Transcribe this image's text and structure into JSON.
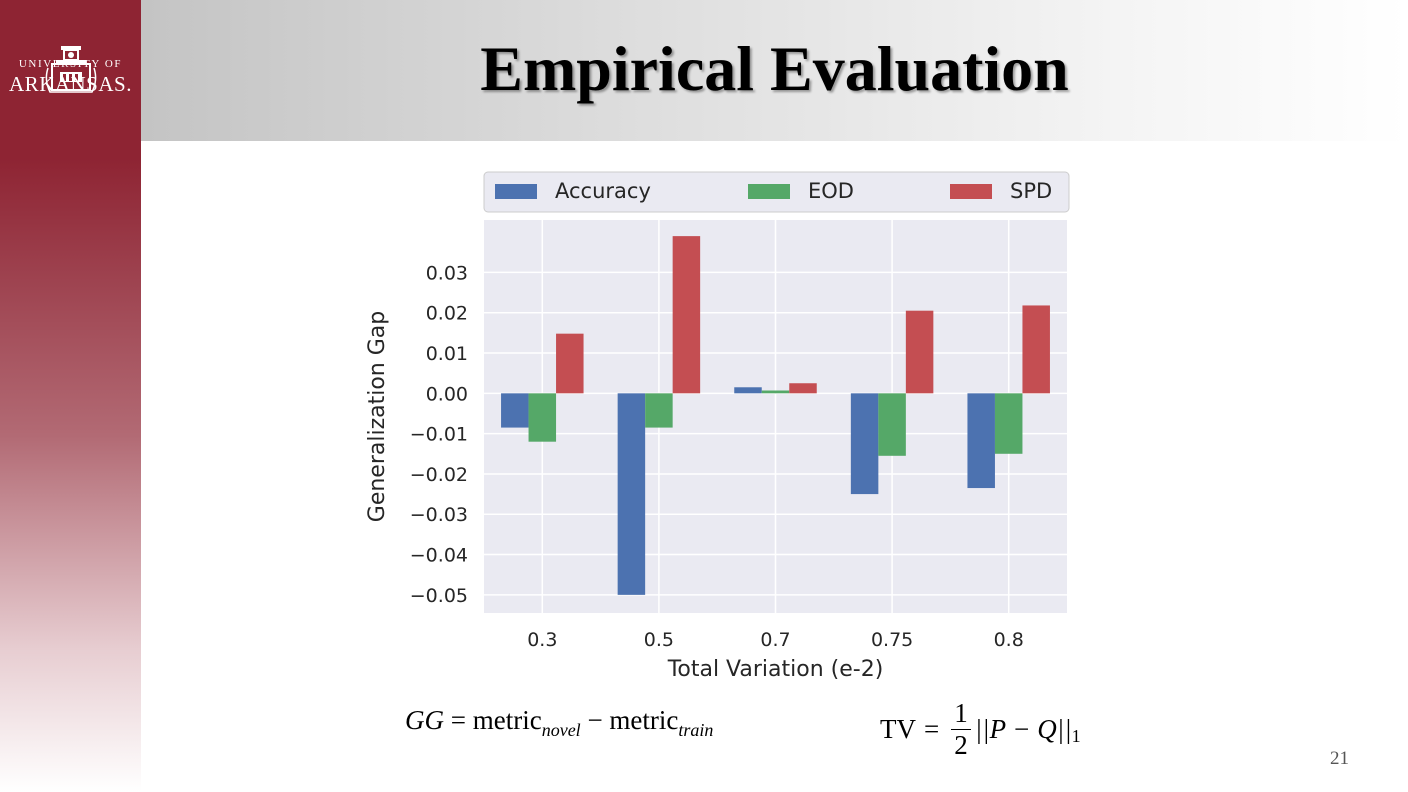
{
  "slide": {
    "title": "Empirical Evaluation",
    "page_number": "21",
    "logo_line1": "UNIVERSITY OF",
    "logo_line2": "ARKANSAS."
  },
  "formulas": {
    "gg_lhs": "GG",
    "eq": "=",
    "metric": "metric",
    "sub_novel": "novel",
    "minus": "−",
    "sub_train": "train",
    "tv_lhs": "TV",
    "frac_num": "1",
    "frac_den": "2",
    "norm": "||P − Q||",
    "norm_sub": "1"
  },
  "colors": {
    "sidebar": "#8e2433",
    "plot_bg": "#eaeaf2",
    "accuracy": "#4c72b0",
    "eod": "#55a868",
    "spd": "#c44e52"
  },
  "chart_data": {
    "type": "bar",
    "xlabel": "Total Variation (e-2)",
    "ylabel": "Generalization Gap",
    "categories": [
      "0.3",
      "0.5",
      "0.7",
      "0.75",
      "0.8"
    ],
    "series": [
      {
        "name": "Accuracy",
        "color": "#4c72b0",
        "values": [
          -0.0085,
          -0.05,
          0.0015,
          -0.025,
          -0.0235
        ]
      },
      {
        "name": "EOD",
        "color": "#55a868",
        "values": [
          -0.012,
          -0.0085,
          0.0007,
          -0.0155,
          -0.015
        ]
      },
      {
        "name": "SPD",
        "color": "#c44e52",
        "values": [
          0.0148,
          0.039,
          0.0025,
          0.0205,
          0.0218
        ]
      }
    ],
    "ylim": [
      -0.0545,
      0.043
    ],
    "yticks": [
      0.03,
      0.02,
      0.01,
      0.0,
      -0.01,
      -0.02,
      -0.03,
      -0.04,
      -0.05
    ],
    "ytick_labels": [
      "0.03",
      "0.02",
      "0.01",
      "0.00",
      "−0.01",
      "−0.02",
      "−0.03",
      "−0.04",
      "−0.05"
    ],
    "grid": true,
    "legend_position": "top"
  }
}
